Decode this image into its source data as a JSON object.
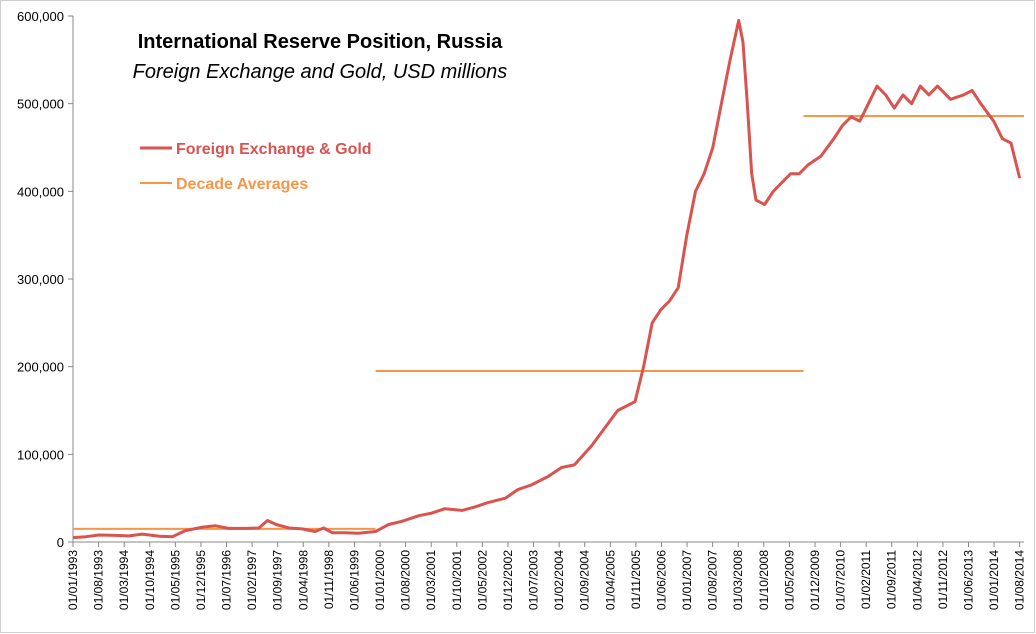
{
  "chart_data": {
    "type": "line",
    "title": "International Reserve Position, Russia",
    "subtitle": "Foreign Exchange and Gold, USD millions",
    "xlabel": "",
    "ylabel": "",
    "ylim": [
      0,
      600000
    ],
    "yticks": [
      0,
      100000,
      200000,
      300000,
      400000,
      500000,
      600000
    ],
    "ytick_labels": [
      "0",
      "100,000",
      "200,000",
      "300,000",
      "400,000",
      "500,000",
      "600,000"
    ],
    "xtick_labels": [
      "01/01/1993",
      "01/08/1993",
      "01/03/1994",
      "01/10/1994",
      "01/05/1995",
      "01/12/1995",
      "01/07/1996",
      "01/02/1997",
      "01/09/1997",
      "01/04/1998",
      "01/11/1998",
      "01/06/1999",
      "01/01/2000",
      "01/08/2000",
      "01/03/2001",
      "01/10/2001",
      "01/05/2002",
      "01/12/2002",
      "01/07/2003",
      "01/02/2004",
      "01/09/2004",
      "01/04/2005",
      "01/11/2005",
      "01/06/2006",
      "01/01/2007",
      "01/08/2007",
      "01/03/2008",
      "01/10/2008",
      "01/05/2009",
      "01/12/2009",
      "01/07/2010",
      "01/02/2011",
      "01/09/2011",
      "01/04/2012",
      "01/11/2012",
      "01/06/2013",
      "01/01/2014",
      "01/08/2014"
    ],
    "x_start": 1993.0,
    "x_end": 2015.0,
    "grid": false,
    "legend": {
      "position": "top-left",
      "entries": [
        {
          "label": "Foreign Exchange & Gold",
          "color": "#D9534F"
        },
        {
          "label": "Decade Averages",
          "color": "#F79646"
        }
      ]
    },
    "series": [
      {
        "name": "Foreign Exchange & Gold",
        "color": "#D9534F",
        "x": [
          1993.0,
          1993.3,
          1993.6,
          1994.0,
          1994.3,
          1994.6,
          1995.0,
          1995.3,
          1995.6,
          1996.0,
          1996.3,
          1996.6,
          1997.0,
          1997.3,
          1997.5,
          1997.7,
          1998.0,
          1998.3,
          1998.6,
          1998.8,
          1999.0,
          1999.3,
          1999.6,
          2000.0,
          2000.3,
          2000.6,
          2001.0,
          2001.3,
          2001.6,
          2002.0,
          2002.3,
          2002.6,
          2003.0,
          2003.3,
          2003.6,
          2004.0,
          2004.3,
          2004.6,
          2005.0,
          2005.3,
          2005.6,
          2006.0,
          2006.2,
          2006.4,
          2006.6,
          2006.8,
          2007.0,
          2007.2,
          2007.4,
          2007.6,
          2007.8,
          2008.0,
          2008.2,
          2008.4,
          2008.5,
          2008.6,
          2008.7,
          2008.8,
          2009.0,
          2009.2,
          2009.4,
          2009.6,
          2009.8,
          2010.0,
          2010.3,
          2010.6,
          2010.8,
          2011.0,
          2011.2,
          2011.4,
          2011.6,
          2011.8,
          2012.0,
          2012.2,
          2012.4,
          2012.6,
          2012.8,
          2013.0,
          2013.3,
          2013.6,
          2013.8,
          2014.0,
          2014.3,
          2014.5,
          2014.7,
          2014.9
        ],
        "values": [
          5000,
          6000,
          8000,
          7500,
          7000,
          9000,
          6500,
          6000,
          13000,
          17000,
          18500,
          15500,
          15500,
          16000,
          24500,
          20000,
          16000,
          15000,
          12000,
          16000,
          10500,
          10500,
          10000,
          12000,
          20000,
          23500,
          30000,
          33000,
          38000,
          36000,
          40000,
          45000,
          50000,
          60000,
          65000,
          75000,
          85000,
          88000,
          110000,
          130000,
          150000,
          160000,
          200000,
          250000,
          265000,
          275000,
          290000,
          350000,
          400000,
          420000,
          450000,
          500000,
          550000,
          595000,
          570000,
          500000,
          420000,
          390000,
          385000,
          400000,
          410000,
          420000,
          420000,
          430000,
          440000,
          460000,
          475000,
          485000,
          480000,
          500000,
          520000,
          510000,
          495000,
          510000,
          500000,
          520000,
          510000,
          520000,
          505000,
          510000,
          515000,
          500000,
          480000,
          460000,
          455000,
          415000
        ]
      }
    ],
    "decade_averages": [
      {
        "x_start": 1993.0,
        "x_end": 2000.0,
        "value": 15000
      },
      {
        "x_start": 2000.0,
        "x_end": 2009.9,
        "value": 195000
      },
      {
        "x_start": 2009.9,
        "x_end": 2015.0,
        "value": 486000
      }
    ]
  }
}
